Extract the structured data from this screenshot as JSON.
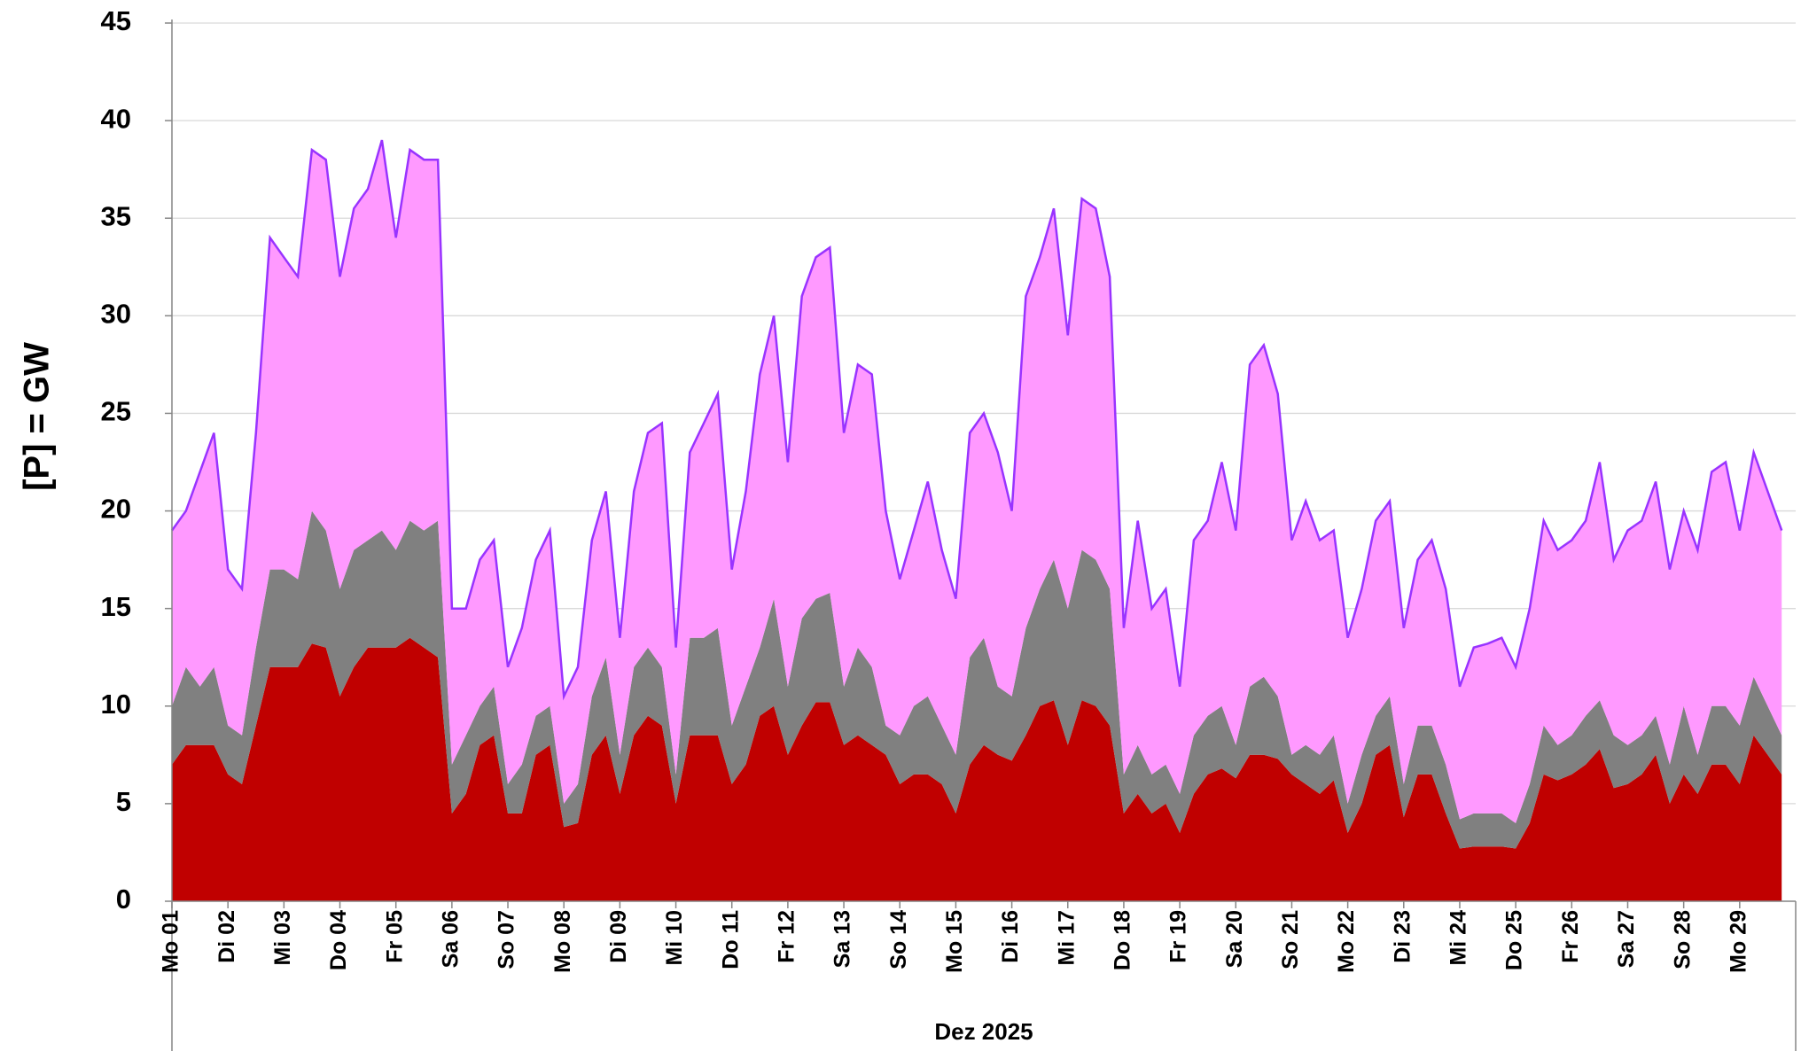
{
  "chart_data": {
    "type": "stacked_area",
    "y_label": "[P] =  GW",
    "x_label": "Dez 2025",
    "x": [
      0,
      0.25,
      0.5,
      0.75,
      1,
      1.25,
      1.5,
      1.75,
      2,
      2.25,
      2.5,
      2.75,
      3,
      3.25,
      3.5,
      3.75,
      4,
      4.25,
      4.5,
      4.75,
      5,
      5.25,
      5.5,
      5.75,
      6,
      6.25,
      6.5,
      6.75,
      7,
      7.25,
      7.5,
      7.75,
      8,
      8.25,
      8.5,
      8.75,
      9,
      9.25,
      9.5,
      9.75,
      10,
      10.25,
      10.5,
      10.75,
      11,
      11.25,
      11.5,
      11.75,
      12,
      12.25,
      12.5,
      12.75,
      13,
      13.25,
      13.5,
      13.75,
      14,
      14.25,
      14.5,
      14.75,
      15,
      15.25,
      15.5,
      15.75,
      16,
      16.25,
      16.5,
      16.75,
      17,
      17.25,
      17.5,
      17.75,
      18,
      18.25,
      18.5,
      18.75,
      19,
      19.25,
      19.5,
      19.75,
      20,
      20.25,
      20.5,
      20.75,
      21,
      21.25,
      21.5,
      21.75,
      22,
      22.25,
      22.5,
      22.75,
      23,
      23.25,
      23.5,
      23.75,
      24,
      24.25,
      24.5,
      24.75,
      25,
      25.25,
      25.5,
      25.75,
      26,
      26.25,
      26.5,
      26.75,
      27,
      27.25,
      27.5,
      27.75,
      28,
      28.25,
      28.5,
      28.75
    ],
    "series": [
      {
        "color": "#c00000",
        "values": [
          7,
          8,
          8,
          8,
          6.5,
          6,
          9,
          12,
          12,
          12,
          13.2,
          13,
          10.5,
          12,
          13,
          13,
          13,
          13.5,
          13,
          12.5,
          4.5,
          5.5,
          8,
          8.5,
          4.5,
          4.5,
          7.5,
          8,
          3.8,
          4,
          7.5,
          8.5,
          5.5,
          8.5,
          9.5,
          9,
          5,
          8.5,
          8.5,
          8.5,
          6,
          7,
          9.5,
          10,
          7.5,
          9,
          10.2,
          10.2,
          8,
          8.5,
          8,
          7.5,
          6,
          6.5,
          6.5,
          6,
          4.5,
          7,
          8,
          7.5,
          7.2,
          8.5,
          10,
          10.3,
          8,
          10.3,
          10,
          9,
          4.5,
          5.5,
          4.5,
          5,
          3.5,
          5.5,
          6.5,
          6.8,
          6.3,
          7.5,
          7.5,
          7.3,
          6.5,
          6,
          5.5,
          6.2,
          3.5,
          5,
          7.5,
          8,
          4.3,
          6.5,
          6.5,
          4.5,
          2.7,
          2.8,
          2.8,
          2.8,
          2.7,
          4,
          6.5,
          6.2,
          6.5,
          7,
          7.8,
          5.8,
          6,
          6.5,
          7.5,
          5,
          6.5,
          5.5,
          7,
          7,
          6,
          8.5,
          7.5,
          6.5
        ]
      },
      {
        "color": "#808080",
        "values": [
          3,
          4,
          3,
          4,
          2.5,
          2.5,
          4,
          5,
          5,
          4.5,
          6.8,
          6,
          5.5,
          6,
          5.5,
          6,
          5,
          6,
          6,
          7,
          2.5,
          3,
          2,
          2.5,
          1.5,
          2.5,
          2,
          2,
          1.2,
          2,
          3,
          4,
          2,
          3.5,
          3.5,
          3,
          1.5,
          5,
          5,
          5.5,
          3,
          4,
          3.5,
          5.5,
          3.5,
          5.5,
          5.3,
          5.6,
          3,
          4.5,
          4,
          1.5,
          2.5,
          3.5,
          4,
          3,
          3,
          5.5,
          5.5,
          3.5,
          3.3,
          5.5,
          6,
          7.2,
          7,
          7.7,
          7.5,
          7,
          2,
          2.5,
          2,
          2,
          2,
          3,
          3,
          3.2,
          1.7,
          3.5,
          4,
          3.2,
          1,
          2,
          2,
          2.3,
          1.5,
          2.5,
          2,
          2.5,
          1.7,
          2.5,
          2.5,
          2.5,
          1.5,
          1.7,
          1.7,
          1.7,
          1.3,
          2,
          2.5,
          1.8,
          2,
          2.5,
          2.5,
          2.7,
          2,
          2,
          2,
          2,
          3.5,
          2,
          3,
          3,
          3,
          3,
          2.5,
          2
        ]
      },
      {
        "color": "#ff99ff",
        "edge_color": "#9933ff",
        "values": [
          9,
          8,
          11,
          12,
          8,
          7.5,
          11,
          17,
          16,
          15.5,
          18.5,
          19,
          16,
          17.5,
          18,
          20,
          16,
          19,
          19,
          18.5,
          8,
          6.5,
          7.5,
          7.5,
          6,
          7,
          8,
          9,
          5.5,
          6,
          8,
          8.5,
          6,
          9,
          11,
          12.5,
          6.5,
          9.5,
          11,
          12,
          8,
          10,
          14,
          14.5,
          11.5,
          16.5,
          17.5,
          17.7,
          13,
          14.5,
          15,
          11,
          8,
          9,
          11,
          9,
          8,
          11.5,
          11.5,
          12,
          9.5,
          17,
          17,
          18,
          14,
          18,
          18,
          16,
          7.5,
          11.5,
          8.5,
          9,
          5.5,
          10,
          10,
          12.5,
          11,
          16.5,
          17,
          15.5,
          11,
          12.5,
          11,
          10.5,
          8.5,
          8.5,
          10,
          10,
          8,
          8.5,
          9.5,
          9,
          6.8,
          8.5,
          8.7,
          9,
          8,
          9,
          10.5,
          10,
          10,
          10,
          12.2,
          9,
          11,
          11,
          12,
          10,
          10,
          10.5,
          12,
          12.5,
          10,
          11.5,
          11,
          10.5
        ]
      }
    ],
    "xlim": [
      0,
      29
    ],
    "xticks": [
      {
        "value": 0,
        "label": "Mo 01"
      },
      {
        "value": 1,
        "label": "Di 02"
      },
      {
        "value": 2,
        "label": "Mi 03"
      },
      {
        "value": 3,
        "label": "Do 04"
      },
      {
        "value": 4,
        "label": "Fr 05"
      },
      {
        "value": 5,
        "label": "Sa 06"
      },
      {
        "value": 6,
        "label": "So 07"
      },
      {
        "value": 7,
        "label": "Mo 08"
      },
      {
        "value": 8,
        "label": "Di 09"
      },
      {
        "value": 9,
        "label": "Mi 10"
      },
      {
        "value": 10,
        "label": "Do 11"
      },
      {
        "value": 11,
        "label": "Fr 12"
      },
      {
        "value": 12,
        "label": "Sa 13"
      },
      {
        "value": 13,
        "label": "So 14"
      },
      {
        "value": 14,
        "label": "Mo 15"
      },
      {
        "value": 15,
        "label": "Di 16"
      },
      {
        "value": 16,
        "label": "Mi 17"
      },
      {
        "value": 17,
        "label": "Do 18"
      },
      {
        "value": 18,
        "label": "Fr 19"
      },
      {
        "value": 19,
        "label": "Sa 20"
      },
      {
        "value": 20,
        "label": "So 21"
      },
      {
        "value": 21,
        "label": "Mo 22"
      },
      {
        "value": 22,
        "label": "Di 23"
      },
      {
        "value": 23,
        "label": "Mi 24"
      },
      {
        "value": 24,
        "label": "Do 25"
      },
      {
        "value": 25,
        "label": "Fr 26"
      },
      {
        "value": 26,
        "label": "Sa 27"
      },
      {
        "value": 27,
        "label": "So 28"
      },
      {
        "value": 28,
        "label": "Mo 29"
      }
    ],
    "ylim": [
      0,
      45
    ],
    "yticks": [
      0,
      5,
      10,
      15,
      20,
      25,
      30,
      35,
      40,
      45
    ],
    "grid": true
  }
}
